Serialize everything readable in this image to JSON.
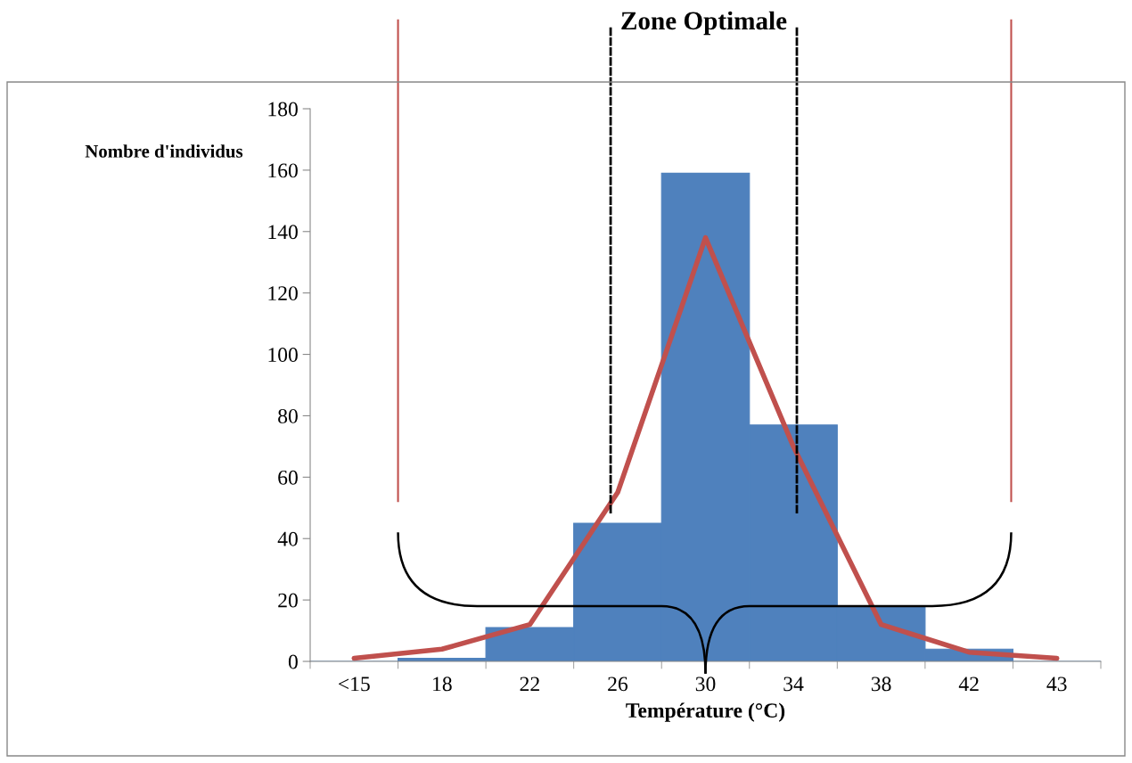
{
  "chart_data": {
    "type": "bar",
    "xlabel": "Température (°C)",
    "ylabel": "Nombre d'individus",
    "categories": [
      "<15",
      "18",
      "22",
      "26",
      "30",
      "34",
      "38",
      "42",
      "43"
    ],
    "series": [
      {
        "color": "#4f81bd",
        "values": [
          0,
          1,
          11,
          45,
          159,
          77,
          18,
          4,
          0
        ]
      },
      {
        "type": "line",
        "color": "#c0504d",
        "values": [
          1,
          4,
          12,
          55,
          138,
          70,
          12,
          3,
          1
        ]
      }
    ],
    "ylim": [
      0,
      180
    ],
    "yticks": [
      0,
      20,
      40,
      60,
      80,
      100,
      120,
      140,
      160,
      180
    ],
    "grid": false,
    "annotations": [
      "Zone Optimale"
    ]
  }
}
